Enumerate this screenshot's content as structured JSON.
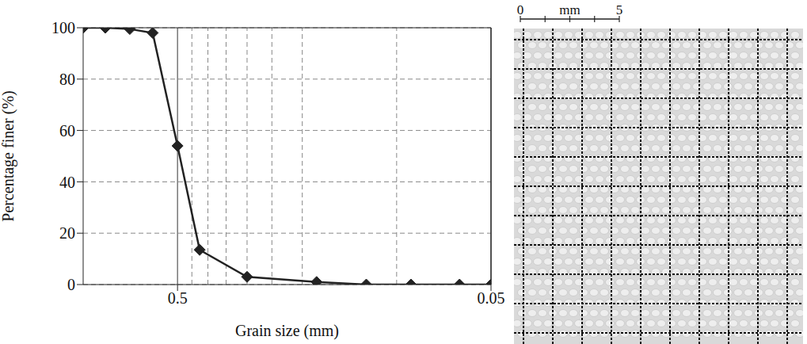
{
  "chart_data": {
    "type": "line",
    "x_label": "Grain size (mm)",
    "y_label": "Percentage finer (%)",
    "x": [
      1.0,
      0.85,
      0.71,
      0.6,
      0.5,
      0.425,
      0.3,
      0.18,
      0.125,
      0.09,
      0.063,
      0.05
    ],
    "values": [
      100,
      100,
      99.5,
      98,
      54,
      13.5,
      3,
      1,
      0,
      0,
      0,
      0
    ],
    "color": "#222222",
    "marker": "diamond",
    "log": "x",
    "xlim": [
      1,
      0.05
    ],
    "xticks": [
      0.5,
      0.05
    ],
    "x_minor_gridlines": [
      0.45,
      0.4,
      0.35,
      0.3,
      0.25,
      0.2,
      0.1
    ],
    "ylim": [
      0,
      100
    ],
    "yticks": [
      0,
      20,
      40,
      60,
      80,
      100
    ],
    "grid": true
  },
  "image": {
    "scale_bar": {
      "min": 0,
      "max": 5,
      "unit": "mm"
    }
  }
}
